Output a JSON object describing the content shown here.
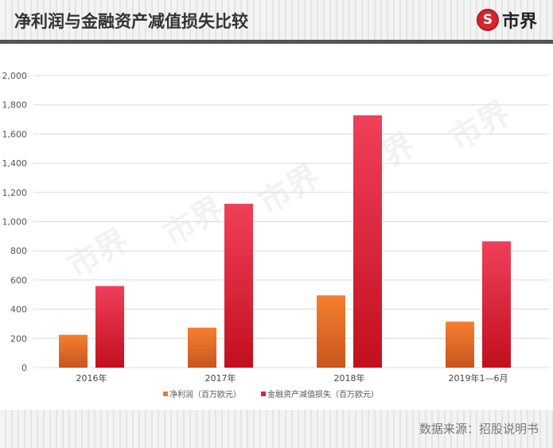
{
  "header": {
    "title": "净利润与金融资产减值损失比较",
    "logo_text": "市界",
    "logo_mark": "S"
  },
  "footer": {
    "source": "数据来源：招股说明书"
  },
  "chart_data": {
    "type": "bar",
    "categories": [
      "2016年",
      "2017年",
      "2018年",
      "2019年1—6月"
    ],
    "series": [
      {
        "name": "净利润（百万欧元）",
        "values": [
          225,
          274,
          495,
          315
        ],
        "color": "#f07a2c"
      },
      {
        "name": "金融资产减值损失（百万欧元）",
        "values": [
          559,
          1122,
          1728,
          865
        ],
        "color": "#e0213f"
      }
    ],
    "ylim": [
      0,
      2000
    ],
    "yticks": [
      0,
      200,
      400,
      600,
      800,
      1000,
      1200,
      1400,
      1600,
      1800,
      2000
    ],
    "ytick_labels": [
      "0",
      "200",
      "400",
      "600",
      "800",
      "1,000",
      "1,200",
      "1,400",
      "1,600",
      "1,800",
      "2,000"
    ],
    "grid": true,
    "legend": "bottom",
    "watermark": "市界"
  }
}
